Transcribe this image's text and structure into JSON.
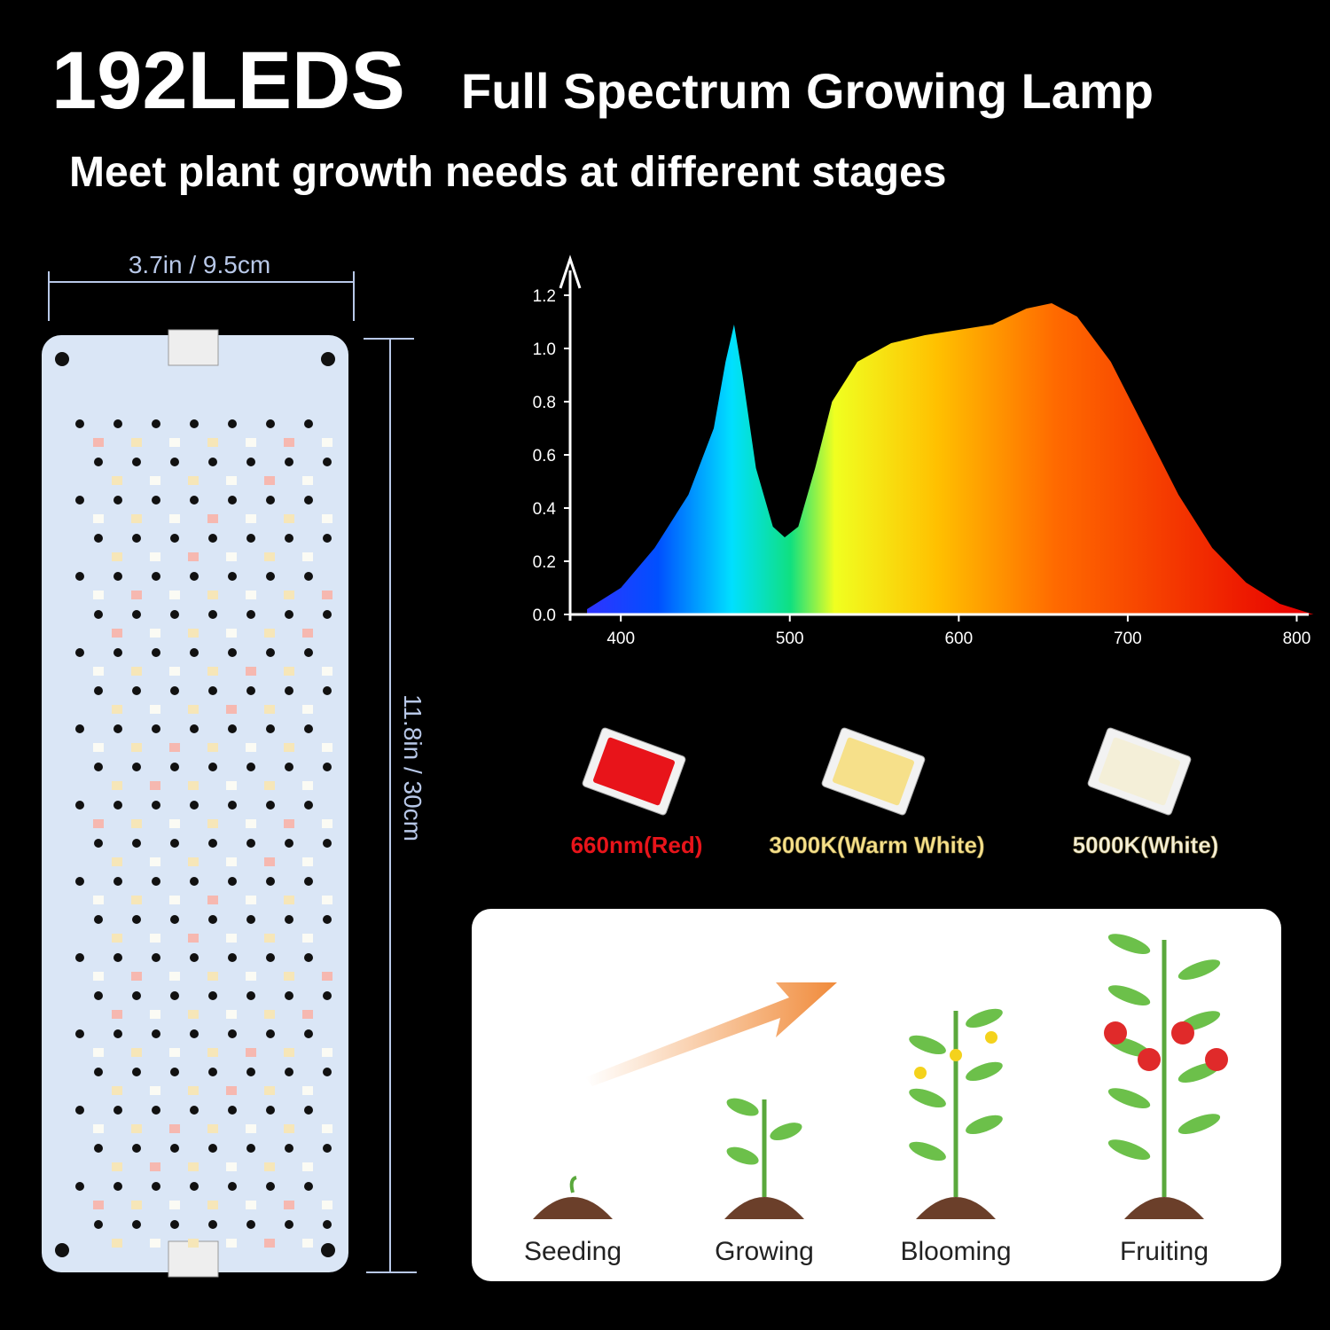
{
  "header": {
    "count": "192LEDS",
    "title": "Full Spectrum Growing Lamp",
    "subtitle": "Meet plant growth needs at different stages"
  },
  "board": {
    "width": "3.7in / 9.5cm",
    "height": "11.8in / 30cm"
  },
  "chart_data": {
    "type": "area",
    "x": [
      380,
      400,
      420,
      440,
      455,
      462,
      467,
      472,
      480,
      490,
      497,
      505,
      515,
      525,
      540,
      560,
      580,
      600,
      620,
      640,
      655,
      670,
      690,
      710,
      730,
      750,
      770,
      790,
      810
    ],
    "series": [
      {
        "values": [
          0.02,
          0.1,
          0.25,
          0.45,
          0.7,
          0.95,
          1.09,
          0.9,
          0.55,
          0.33,
          0.29,
          0.33,
          0.55,
          0.8,
          0.95,
          1.02,
          1.05,
          1.07,
          1.09,
          1.15,
          1.17,
          1.12,
          0.95,
          0.7,
          0.45,
          0.25,
          0.12,
          0.04,
          0.0
        ]
      }
    ],
    "xlim": [
      370,
      805
    ],
    "ylim": [
      0,
      1.25
    ],
    "xticks": [
      400,
      500,
      600,
      700,
      800
    ],
    "yticks": [
      {
        "value": 0,
        "label": "0.0"
      },
      {
        "value": 0.2,
        "label": "0.2"
      },
      {
        "value": 0.4,
        "label": "0.4"
      },
      {
        "value": 0.6,
        "label": "0.6"
      },
      {
        "value": 0.8,
        "label": "0.8"
      },
      {
        "value": 1,
        "label": "1.0"
      },
      {
        "value": 1.2,
        "label": "1.2"
      }
    ]
  },
  "chips": [
    {
      "label": "660nm(Red)",
      "color": "#e8141a"
    },
    {
      "label": "3000K(Warm White)",
      "color": "#f6e08a"
    },
    {
      "label": "5000K(White)",
      "color": "#f4efd8"
    }
  ],
  "stages": [
    "Seeding",
    "Growing",
    "Blooming",
    "Fruiting"
  ]
}
